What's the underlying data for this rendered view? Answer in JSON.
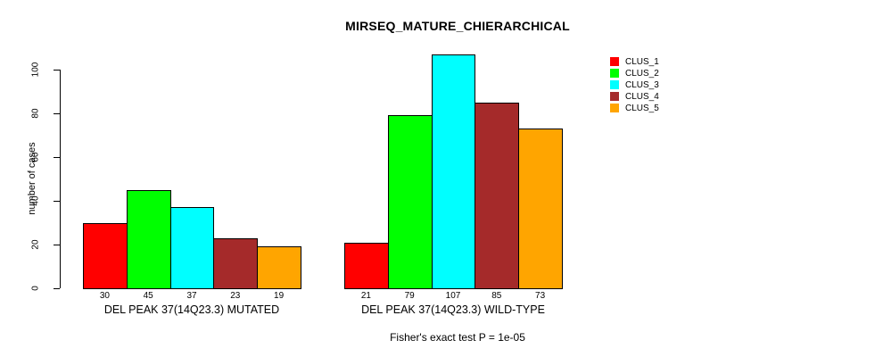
{
  "chart_data": {
    "type": "bar",
    "title": "MIRSEQ_MATURE_CHIERARCHICAL",
    "ylabel": "number of cases",
    "xlabel": "",
    "ylim": [
      0,
      100
    ],
    "yticks": [
      0,
      20,
      40,
      60,
      80,
      100
    ],
    "grid": false,
    "legend_position": "topright",
    "categories": [
      "DEL PEAK 37(14Q23.3) MUTATED",
      "DEL PEAK 37(14Q23.3) WILD-TYPE"
    ],
    "series": [
      {
        "name": "CLUS_1",
        "color": "#FF0000",
        "values": [
          30,
          21
        ]
      },
      {
        "name": "CLUS_2",
        "color": "#00FF00",
        "values": [
          45,
          79
        ]
      },
      {
        "name": "CLUS_3",
        "color": "#00FFFF",
        "values": [
          37,
          107
        ]
      },
      {
        "name": "CLUS_4",
        "color": "#A52A2A",
        "values": [
          23,
          85
        ]
      },
      {
        "name": "CLUS_5",
        "color": "#FFA500",
        "values": [
          19,
          73
        ]
      }
    ],
    "bar_value_labels_shown": true,
    "annotation": "Fisher's exact test P = 1e-05"
  }
}
